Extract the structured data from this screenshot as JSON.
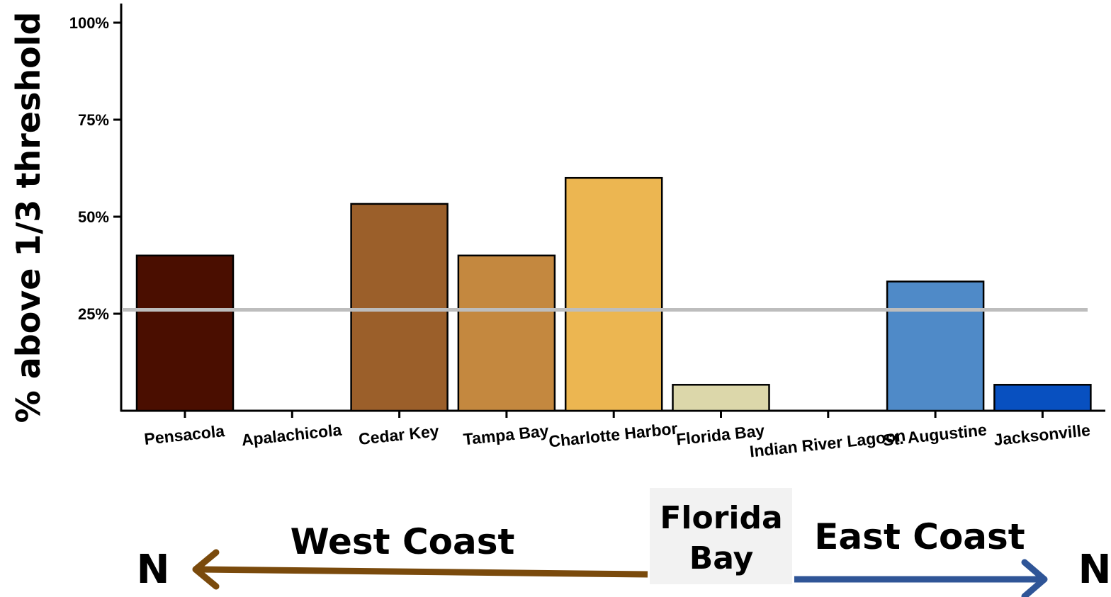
{
  "chart_data": {
    "type": "bar",
    "ylabel": "% above 1/3 threshold",
    "ylim": [
      0,
      100
    ],
    "yticks": [
      25,
      50,
      75,
      100
    ],
    "ytick_labels": [
      "25%",
      "50%",
      "75%",
      "100%"
    ],
    "categories": [
      "Pensacola",
      "Apalachicola",
      "Cedar Key",
      "Tampa Bay",
      "Charlotte Harbor",
      "Florida Bay",
      "Indian River Lagoon",
      "St. Augustine",
      "Jacksonville"
    ],
    "values": [
      40,
      0,
      53.3,
      40,
      60,
      6.7,
      0,
      33.3,
      6.7
    ],
    "colors": [
      "#4a0e00",
      "#ffffff",
      "#9b5f2a",
      "#c4883f",
      "#ecb651",
      "#dcd7aa",
      "#ffffff",
      "#4f8ac8",
      "#0850c0"
    ],
    "reference_line": {
      "value": 26,
      "color": "#bdbdbd"
    },
    "grid": false
  },
  "annotations": {
    "west_coast": "West Coast",
    "east_coast": "East Coast",
    "center_line1": "Florida",
    "center_line2": "Bay",
    "north_left": "N",
    "north_right": "N",
    "west_arrow_color": "#7a4a0c",
    "east_arrow_color": "#2f5597",
    "center_box_color": "#f2f2f2"
  }
}
